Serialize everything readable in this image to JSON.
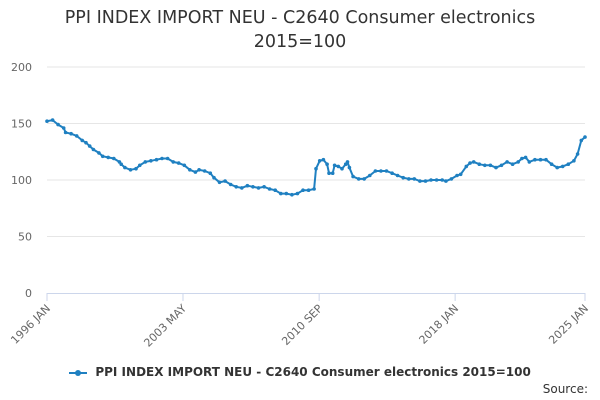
{
  "chart_data": {
    "type": "line",
    "title": "PPI INDEX IMPORT NEU - C2640 Consumer electronics",
    "subtitle": "2015=100",
    "xlabel": "",
    "ylabel": "",
    "ylim": [
      0,
      200
    ],
    "yticks": [
      0,
      50,
      100,
      150,
      200
    ],
    "xlim": [
      1996.0,
      2025.0
    ],
    "xticks": [
      {
        "pos": 1996.0,
        "label": "1996 JAN"
      },
      {
        "pos": 2003.33,
        "label": "2003 MAY"
      },
      {
        "pos": 2010.67,
        "label": "2010 SEP"
      },
      {
        "pos": 2018.0,
        "label": "2018 JAN"
      },
      {
        "pos": 2025.0,
        "label": "2025 JAN"
      }
    ],
    "grid": true,
    "legend_position": "bottom",
    "series": [
      {
        "name": "PPI INDEX IMPORT NEU - C2640 Consumer electronics 2015=100",
        "color": "#1f80c1",
        "points": [
          [
            1996.0,
            152
          ],
          [
            1996.3,
            153
          ],
          [
            1996.6,
            149
          ],
          [
            1996.9,
            146
          ],
          [
            1997.0,
            142
          ],
          [
            1997.3,
            141
          ],
          [
            1997.6,
            139
          ],
          [
            1997.9,
            135
          ],
          [
            1998.1,
            133
          ],
          [
            1998.3,
            130
          ],
          [
            1998.5,
            127
          ],
          [
            1998.8,
            124
          ],
          [
            1999.0,
            121
          ],
          [
            1999.3,
            120
          ],
          [
            1999.6,
            119
          ],
          [
            1999.9,
            116
          ],
          [
            2000.0,
            114
          ],
          [
            2000.2,
            111
          ],
          [
            2000.5,
            109
          ],
          [
            2000.8,
            110
          ],
          [
            2001.0,
            113
          ],
          [
            2001.3,
            116
          ],
          [
            2001.6,
            117
          ],
          [
            2001.9,
            118
          ],
          [
            2002.2,
            119
          ],
          [
            2002.5,
            119
          ],
          [
            2002.8,
            116
          ],
          [
            2003.1,
            115
          ],
          [
            2003.4,
            113
          ],
          [
            2003.7,
            109
          ],
          [
            2004.0,
            107
          ],
          [
            2004.2,
            109
          ],
          [
            2004.5,
            108
          ],
          [
            2004.8,
            106
          ],
          [
            2005.0,
            102
          ],
          [
            2005.3,
            98
          ],
          [
            2005.6,
            99
          ],
          [
            2005.9,
            96
          ],
          [
            2006.2,
            94
          ],
          [
            2006.5,
            93
          ],
          [
            2006.8,
            95
          ],
          [
            2007.1,
            94
          ],
          [
            2007.4,
            93
          ],
          [
            2007.7,
            94
          ],
          [
            2008.0,
            92
          ],
          [
            2008.3,
            91
          ],
          [
            2008.6,
            88
          ],
          [
            2008.9,
            88
          ],
          [
            2009.2,
            87
          ],
          [
            2009.5,
            88
          ],
          [
            2009.8,
            91
          ],
          [
            2010.1,
            91
          ],
          [
            2010.4,
            92
          ],
          [
            2010.5,
            110
          ],
          [
            2010.7,
            117
          ],
          [
            2010.9,
            118
          ],
          [
            2011.1,
            114
          ],
          [
            2011.2,
            106
          ],
          [
            2011.4,
            106
          ],
          [
            2011.5,
            113
          ],
          [
            2011.7,
            112
          ],
          [
            2011.9,
            110
          ],
          [
            2012.1,
            114
          ],
          [
            2012.2,
            116
          ],
          [
            2012.3,
            111
          ],
          [
            2012.5,
            103
          ],
          [
            2012.8,
            101
          ],
          [
            2013.1,
            101
          ],
          [
            2013.4,
            104
          ],
          [
            2013.7,
            108
          ],
          [
            2014.0,
            108
          ],
          [
            2014.3,
            108
          ],
          [
            2014.6,
            106
          ],
          [
            2014.9,
            104
          ],
          [
            2015.2,
            102
          ],
          [
            2015.5,
            101
          ],
          [
            2015.8,
            101
          ],
          [
            2016.1,
            99
          ],
          [
            2016.4,
            99
          ],
          [
            2016.7,
            100
          ],
          [
            2017.0,
            100
          ],
          [
            2017.3,
            100
          ],
          [
            2017.5,
            99
          ],
          [
            2017.8,
            101
          ],
          [
            2018.1,
            104
          ],
          [
            2018.3,
            105
          ],
          [
            2018.6,
            112
          ],
          [
            2018.8,
            115
          ],
          [
            2019.0,
            116
          ],
          [
            2019.3,
            114
          ],
          [
            2019.6,
            113
          ],
          [
            2019.9,
            113
          ],
          [
            2020.2,
            111
          ],
          [
            2020.5,
            113
          ],
          [
            2020.8,
            116
          ],
          [
            2021.1,
            114
          ],
          [
            2021.4,
            116
          ],
          [
            2021.6,
            119
          ],
          [
            2021.8,
            120
          ],
          [
            2022.0,
            116
          ],
          [
            2022.3,
            118
          ],
          [
            2022.6,
            118
          ],
          [
            2022.9,
            118
          ],
          [
            2023.2,
            114
          ],
          [
            2023.5,
            111
          ],
          [
            2023.8,
            112
          ],
          [
            2024.1,
            114
          ],
          [
            2024.4,
            117
          ],
          [
            2024.6,
            123
          ],
          [
            2024.8,
            135
          ],
          [
            2025.0,
            138
          ]
        ]
      }
    ]
  },
  "footer": {
    "source_label": "Source:"
  }
}
